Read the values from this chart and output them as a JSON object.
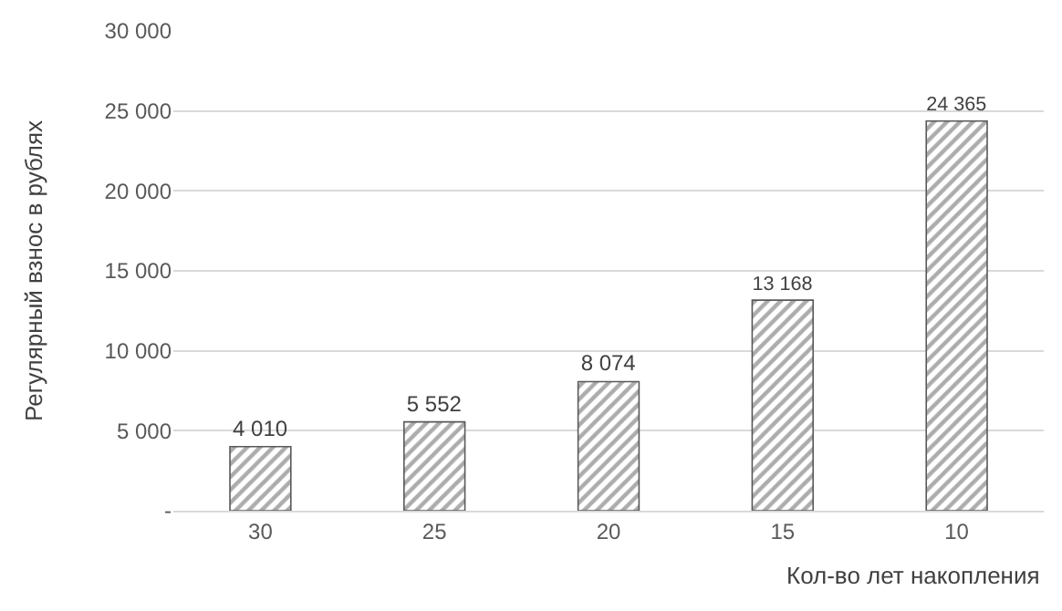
{
  "chart_data": {
    "type": "bar",
    "xlabel": "Кол-во лет накопления",
    "ylabel": "Регулярный взнос в рублях",
    "categories": [
      "30",
      "25",
      "20",
      "15",
      "10"
    ],
    "values": [
      4010,
      5552,
      8074,
      13168,
      24365
    ],
    "value_labels": [
      "4 010",
      "5 552",
      "8 074",
      "13 168",
      "24 365"
    ],
    "color": "#595959",
    "ylim": [
      0,
      30000
    ],
    "yticks": [
      {
        "value": 0,
        "label": "-"
      },
      {
        "value": 5000,
        "label": "5 000"
      },
      {
        "value": 10000,
        "label": "10 000"
      },
      {
        "value": 15000,
        "label": "15 000"
      },
      {
        "value": 20000,
        "label": "20 000"
      },
      {
        "value": 25000,
        "label": "25 000"
      },
      {
        "value": 30000,
        "label": "30 000"
      }
    ],
    "grid": "y",
    "legend": false
  }
}
